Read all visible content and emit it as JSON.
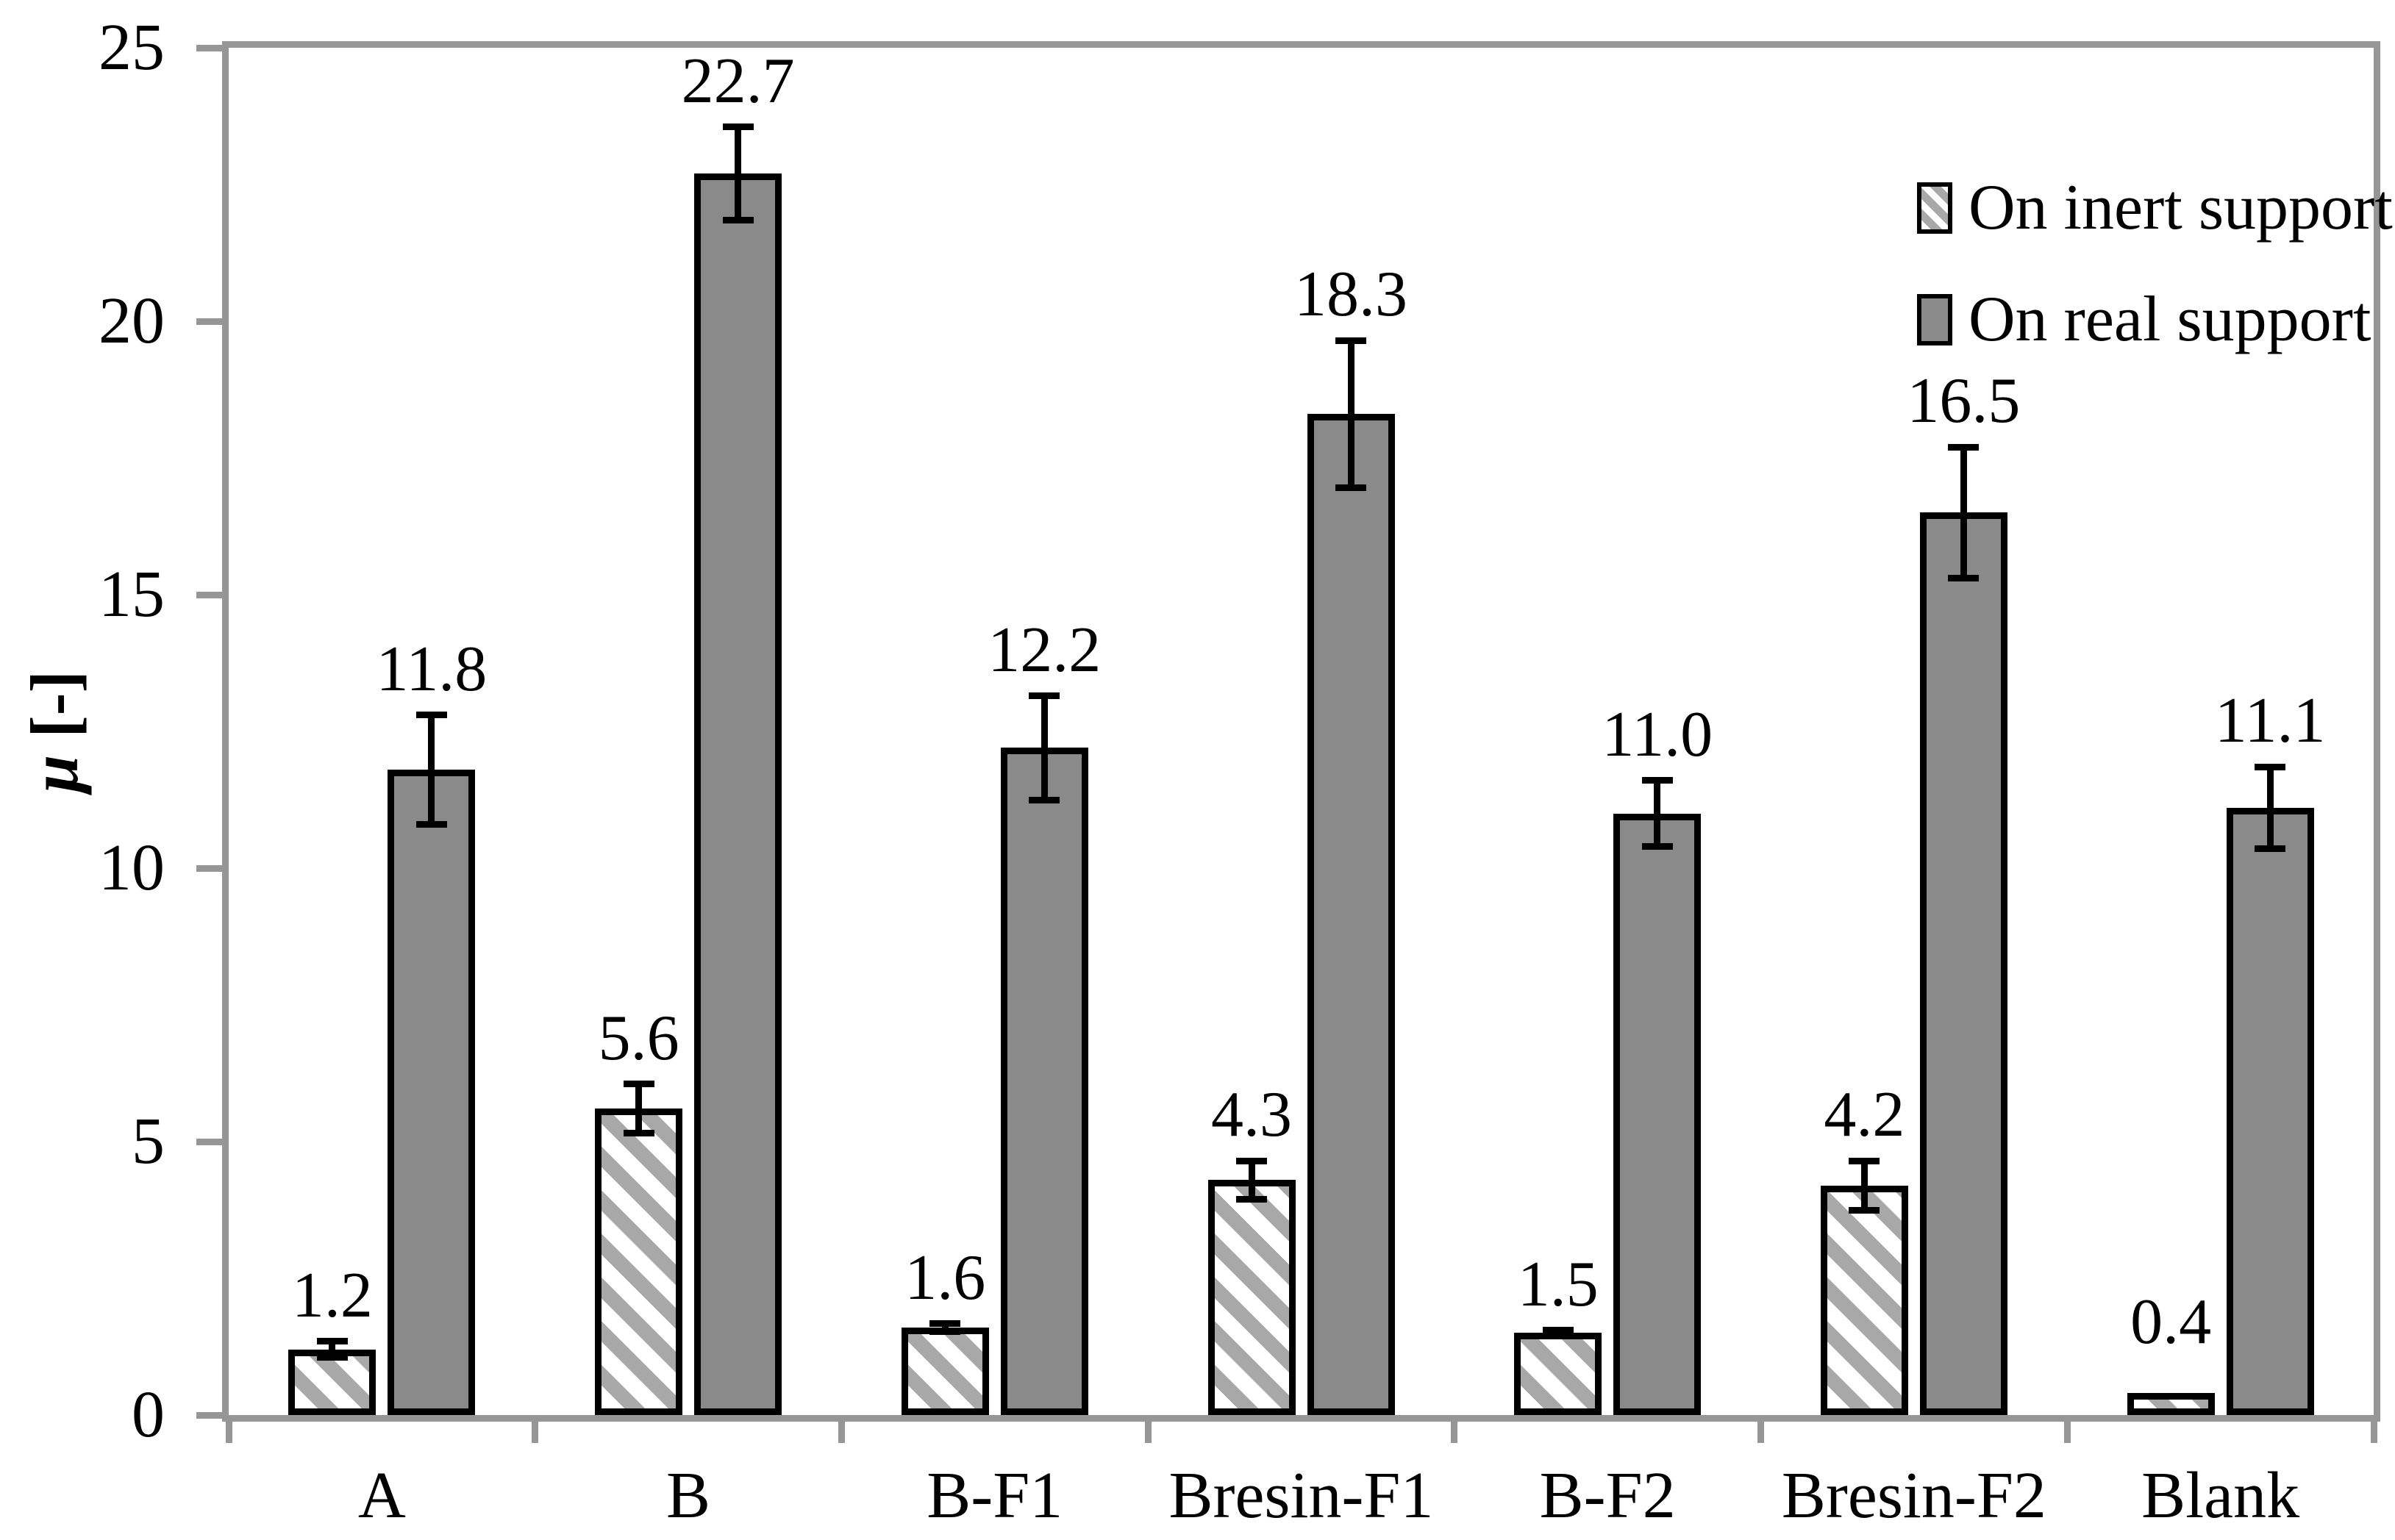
{
  "chart_data": {
    "type": "bar",
    "title": "",
    "ylabel": {
      "symbol": "μ",
      "unit": "[-]"
    },
    "xlabel": "",
    "categories": [
      "A",
      "B",
      "B-F1",
      "Bresin-F1",
      "B-F2",
      "Bresin-F2",
      "Blank"
    ],
    "series": [
      {
        "name": "On inert support",
        "style": "hatched",
        "values": [
          1.2,
          5.6,
          1.6,
          4.3,
          1.5,
          4.2,
          0.4
        ],
        "labels": [
          "1.2",
          "5.6",
          "1.6",
          "4.3",
          "1.5",
          "4.2",
          "0.4"
        ],
        "errors": [
          0.15,
          0.45,
          0.07,
          0.35,
          0.05,
          0.45,
          0
        ]
      },
      {
        "name": "On real support",
        "style": "solid",
        "values": [
          11.8,
          22.7,
          12.2,
          18.3,
          11.0,
          16.5,
          11.1
        ],
        "labels": [
          "11.8",
          "22.7",
          "12.2",
          "18.3",
          "11.0",
          "16.5",
          "11.1"
        ],
        "errors": [
          1.0,
          0.85,
          0.95,
          1.35,
          0.6,
          1.2,
          0.75
        ]
      }
    ],
    "ylim": [
      0,
      25
    ],
    "y_ticks": [
      "0",
      "5",
      "10",
      "15",
      "20",
      "25"
    ],
    "grid": false,
    "legend_position": "top-right-inside",
    "colors": {
      "solid_fill": "#8a8a8a",
      "hatch_stripe": "#a8a8a8",
      "bar_border": "#000000",
      "axis": "#969696",
      "text": "#000000",
      "background": "#ffffff"
    }
  }
}
